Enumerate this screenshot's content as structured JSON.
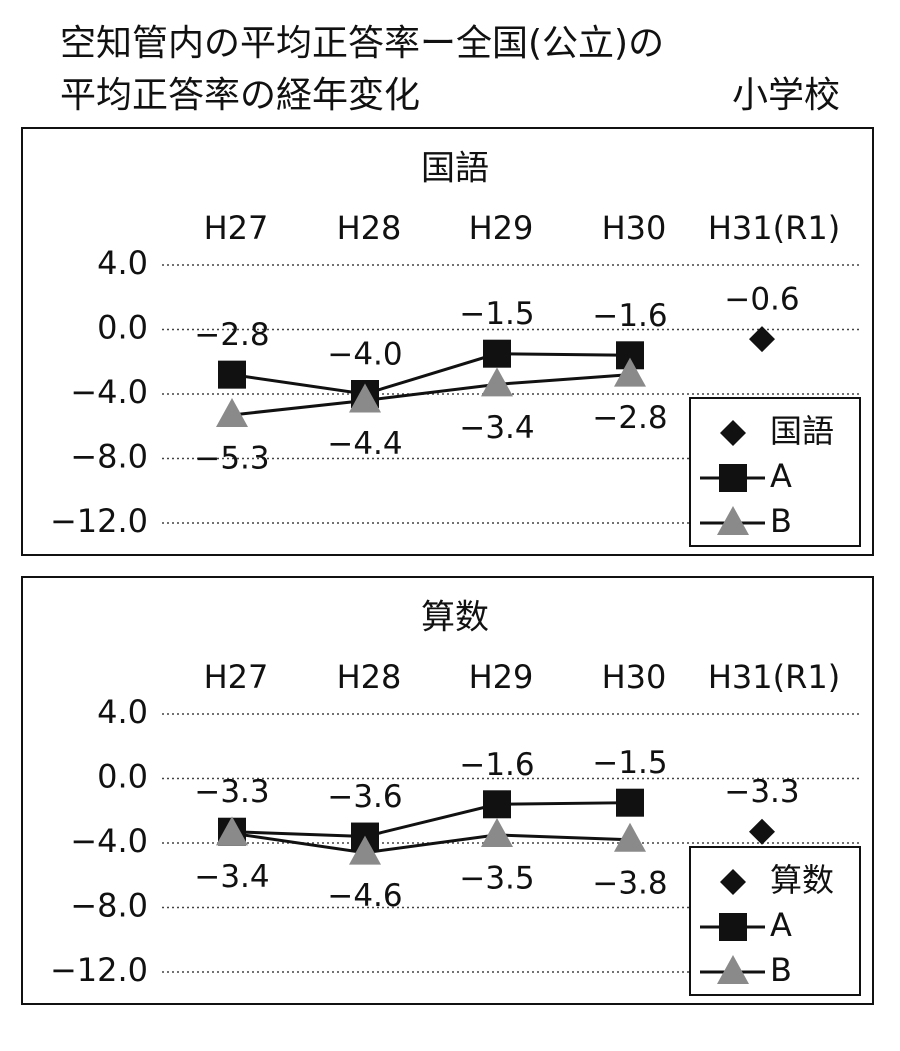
{
  "title": "空知管内の平均正答率ー全国(公立)の",
  "title_line2": "平均正答率の経年変化",
  "school": "小学校",
  "chart_data": [
    {
      "type": "line",
      "title": "国語",
      "categories": [
        "H27",
        "H28",
        "H29",
        "H30",
        "H31(R1)"
      ],
      "ylim": [
        -12,
        4
      ],
      "yticks": [
        {
          "value": 4,
          "label": "4.0"
        },
        {
          "value": 0,
          "label": "0.0"
        },
        {
          "value": -4,
          "label": "−4.0"
        },
        {
          "value": -8,
          "label": "−8.0"
        },
        {
          "value": -12,
          "label": "−12.0"
        }
      ],
      "grid": true,
      "legend": "lower right",
      "series": [
        {
          "name": "国語",
          "color": "#111111",
          "marker": "diamond",
          "values": [
            null,
            null,
            null,
            null,
            -0.6
          ],
          "value_labels": [
            null,
            null,
            null,
            null,
            "−0.6"
          ]
        },
        {
          "name": "A",
          "color": "#111111",
          "marker": "square",
          "values": [
            -2.8,
            -4.0,
            -1.5,
            -1.6,
            null
          ],
          "value_labels": [
            "−2.8",
            "−4.0",
            "−1.5",
            "−1.6",
            null
          ]
        },
        {
          "name": "B",
          "color": "#8a8a8a",
          "marker": "triangle",
          "values": [
            -5.3,
            -4.4,
            -3.4,
            -2.8,
            null
          ],
          "value_labels": [
            "−5.3",
            "−4.4",
            "−3.4",
            "−2.8",
            null
          ]
        }
      ]
    },
    {
      "type": "line",
      "title": "算数",
      "categories": [
        "H27",
        "H28",
        "H29",
        "H30",
        "H31(R1)"
      ],
      "ylim": [
        -12,
        4
      ],
      "yticks": [
        {
          "value": 4,
          "label": "4.0"
        },
        {
          "value": 0,
          "label": "0.0"
        },
        {
          "value": -4,
          "label": "−4.0"
        },
        {
          "value": -8,
          "label": "−8.0"
        },
        {
          "value": -12,
          "label": "−12.0"
        }
      ],
      "grid": true,
      "legend": "lower right",
      "series": [
        {
          "name": "算数",
          "color": "#111111",
          "marker": "diamond",
          "values": [
            null,
            null,
            null,
            null,
            -3.3
          ],
          "value_labels": [
            null,
            null,
            null,
            null,
            "−3.3"
          ]
        },
        {
          "name": "A",
          "color": "#111111",
          "marker": "square",
          "values": [
            -3.3,
            -3.6,
            -1.6,
            -1.5,
            null
          ],
          "value_labels": [
            "−3.3",
            "−3.6",
            "−1.6",
            "−1.5",
            null
          ]
        },
        {
          "name": "B",
          "color": "#8a8a8a",
          "marker": "triangle",
          "values": [
            -3.4,
            -4.6,
            -3.5,
            -3.8,
            null
          ],
          "value_labels": [
            "−3.4",
            "−4.6",
            "−3.5",
            "−3.8",
            null
          ]
        }
      ]
    }
  ]
}
